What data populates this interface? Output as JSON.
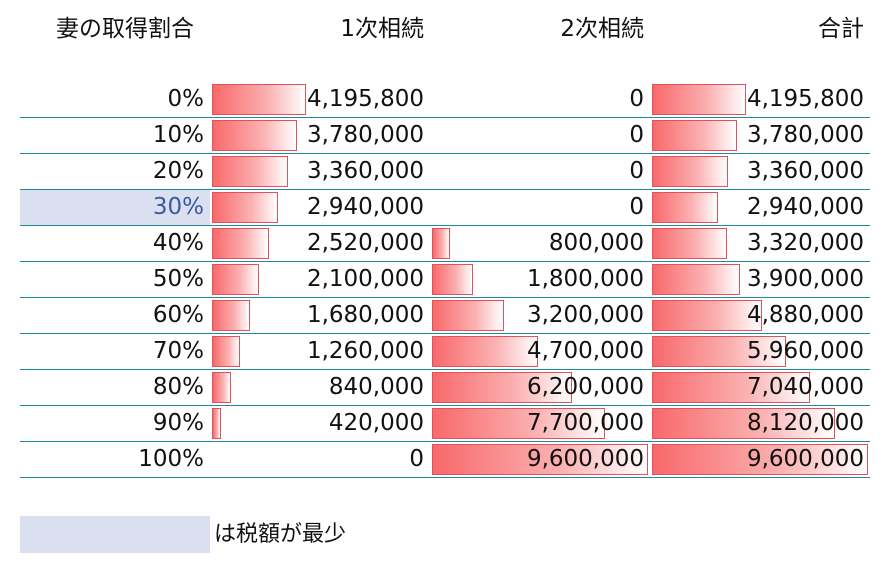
{
  "headers": {
    "rate": "妻の取得割合",
    "first": "1次相続",
    "second": "2次相続",
    "total": "合計"
  },
  "max_value": 9600000,
  "highlight_color": "#dae0ef",
  "bar_color": "#f8696b",
  "rows": [
    {
      "rate": "0%",
      "first": "4,195,800",
      "second": "0",
      "total": "4,195,800",
      "v1": 4195800,
      "v2": 0,
      "v3": 4195800,
      "min": false
    },
    {
      "rate": "10%",
      "first": "3,780,000",
      "second": "0",
      "total": "3,780,000",
      "v1": 3780000,
      "v2": 0,
      "v3": 3780000,
      "min": false
    },
    {
      "rate": "20%",
      "first": "3,360,000",
      "second": "0",
      "total": "3,360,000",
      "v1": 3360000,
      "v2": 0,
      "v3": 3360000,
      "min": false
    },
    {
      "rate": "30%",
      "first": "2,940,000",
      "second": "0",
      "total": "2,940,000",
      "v1": 2940000,
      "v2": 0,
      "v3": 2940000,
      "min": true
    },
    {
      "rate": "40%",
      "first": "2,520,000",
      "second": "800,000",
      "total": "3,320,000",
      "v1": 2520000,
      "v2": 800000,
      "v3": 3320000,
      "min": false
    },
    {
      "rate": "50%",
      "first": "2,100,000",
      "second": "1,800,000",
      "total": "3,900,000",
      "v1": 2100000,
      "v2": 1800000,
      "v3": 3900000,
      "min": false
    },
    {
      "rate": "60%",
      "first": "1,680,000",
      "second": "3,200,000",
      "total": "4,880,000",
      "v1": 1680000,
      "v2": 3200000,
      "v3": 4880000,
      "min": false
    },
    {
      "rate": "70%",
      "first": "1,260,000",
      "second": "4,700,000",
      "total": "5,960,000",
      "v1": 1260000,
      "v2": 4700000,
      "v3": 5960000,
      "min": false
    },
    {
      "rate": "80%",
      "first": "840,000",
      "second": "6,200,000",
      "total": "7,040,000",
      "v1": 840000,
      "v2": 6200000,
      "v3": 7040000,
      "min": false
    },
    {
      "rate": "90%",
      "first": "420,000",
      "second": "7,700,000",
      "total": "8,120,000",
      "v1": 420000,
      "v2": 7700000,
      "v3": 8120000,
      "min": false
    },
    {
      "rate": "100%",
      "first": "0",
      "second": "9,600,000",
      "total": "9,600,000",
      "v1": 0,
      "v2": 9600000,
      "v3": 9600000,
      "min": false
    }
  ],
  "legend": {
    "text": "は税額が最少"
  }
}
